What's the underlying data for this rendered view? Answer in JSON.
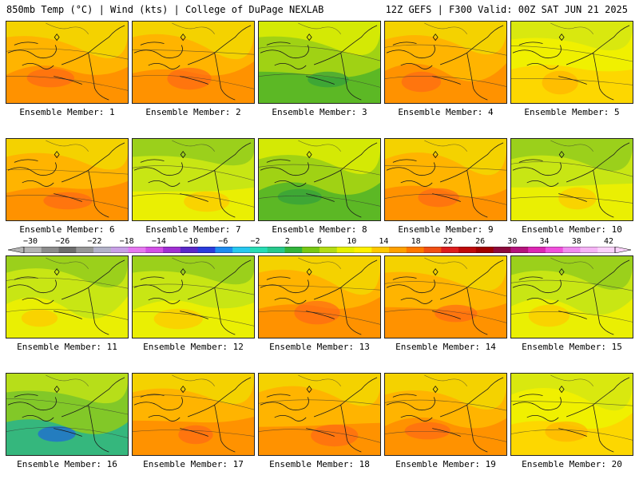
{
  "header": {
    "left_title": "850mb Temp (°C) | Wind (kts) | College of DuPage NEXLAB",
    "right_title": "12Z GEFS | F300 Valid: 00Z SAT JUN 21 2025"
  },
  "colorbar": {
    "tick_labels": [
      "−30",
      "−26",
      "−22",
      "−18",
      "−14",
      "−10",
      "−6",
      "−2",
      "2",
      "6",
      "10",
      "14",
      "18",
      "22",
      "26",
      "30",
      "34",
      "38",
      "42"
    ],
    "colors": [
      "#b4b4b4",
      "#8c8c8c",
      "#6e6e6e",
      "#969696",
      "#b2b2c8",
      "#c8a0e6",
      "#e678f0",
      "#d250e6",
      "#a030d2",
      "#5a28c8",
      "#2a3cdc",
      "#1e8cf0",
      "#28c8f0",
      "#28dcb4",
      "#28c88c",
      "#32b43c",
      "#78c814",
      "#b4dc14",
      "#e6f000",
      "#fff000",
      "#ffc800",
      "#ffa000",
      "#ff7800",
      "#f05014",
      "#dc1e1e",
      "#be0a0a",
      "#a00000",
      "#8c0a3c",
      "#b4147c",
      "#dc28b4",
      "#f050dc",
      "#f08cf0",
      "#f5b4f5",
      "#fad2fa"
    ]
  },
  "members": [
    {
      "label": "Ensemble Member: 1",
      "scheme": "orange"
    },
    {
      "label": "Ensemble Member: 2",
      "scheme": "orange"
    },
    {
      "label": "Ensemble Member: 3",
      "scheme": "green"
    },
    {
      "label": "Ensemble Member: 4",
      "scheme": "orange"
    },
    {
      "label": "Ensemble Member: 5",
      "scheme": "yellow"
    },
    {
      "label": "Ensemble Member: 6",
      "scheme": "orange"
    },
    {
      "label": "Ensemble Member: 7",
      "scheme": "yellowgreen"
    },
    {
      "label": "Ensemble Member: 8",
      "scheme": "green"
    },
    {
      "label": "Ensemble Member: 9",
      "scheme": "orange"
    },
    {
      "label": "Ensemble Member: 10",
      "scheme": "yellowgreen"
    },
    {
      "label": "Ensemble Member: 11",
      "scheme": "yellowgreen"
    },
    {
      "label": "Ensemble Member: 12",
      "scheme": "yellowgreen"
    },
    {
      "label": "Ensemble Member: 13",
      "scheme": "orange"
    },
    {
      "label": "Ensemble Member: 14",
      "scheme": "orange"
    },
    {
      "label": "Ensemble Member: 15",
      "scheme": "yellowgreen"
    },
    {
      "label": "Ensemble Member: 16",
      "scheme": "teal"
    },
    {
      "label": "Ensemble Member: 17",
      "scheme": "orange"
    },
    {
      "label": "Ensemble Member: 18",
      "scheme": "orange"
    },
    {
      "label": "Ensemble Member: 19",
      "scheme": "orange"
    },
    {
      "label": "Ensemble Member: 20",
      "scheme": "yellow"
    }
  ],
  "schemes": {
    "orange": {
      "base": "#ffb400",
      "patch1": "#ff8c00",
      "patch2": "#f0dc00",
      "patch3": "#ff6a14"
    },
    "yellow": {
      "base": "#f0f000",
      "patch1": "#ffd200",
      "patch2": "#d2e614",
      "patch3": "#ffb400"
    },
    "green": {
      "base": "#a0d214",
      "patch1": "#50b428",
      "patch2": "#e6f000",
      "patch3": "#32a03c"
    },
    "yellowgreen": {
      "base": "#c8e614",
      "patch1": "#f0f000",
      "patch2": "#8cc81e",
      "patch3": "#ffc800"
    },
    "teal": {
      "base": "#82c828",
      "patch1": "#28b48c",
      "patch2": "#c8e614",
      "patch3": "#1e64dc"
    }
  }
}
